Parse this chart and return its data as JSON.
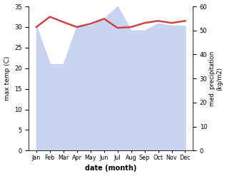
{
  "months": [
    "Jan",
    "Feb",
    "Mar",
    "Apr",
    "May",
    "Jun",
    "Jul",
    "Aug",
    "Sep",
    "Oct",
    "Nov",
    "Dec"
  ],
  "temp": [
    30.0,
    32.5,
    31.2,
    30.0,
    30.8,
    32.0,
    29.8,
    30.0,
    31.0,
    31.5,
    31.0,
    31.5
  ],
  "precip": [
    52,
    36,
    36,
    52,
    52,
    55,
    60,
    50,
    50,
    53,
    52,
    52
  ],
  "temp_color": "#cc4444",
  "precip_fill_color": "#c8d4f0",
  "bg_color": "#ffffff",
  "xlabel": "date (month)",
  "ylabel_left": "max temp (C)",
  "ylabel_right": "med. precipitation\n(kg/m2)",
  "ylim_left": [
    0,
    35
  ],
  "ylim_right": [
    0,
    60
  ],
  "yticks_left": [
    0,
    5,
    10,
    15,
    20,
    25,
    30,
    35
  ],
  "yticks_right": [
    0,
    10,
    20,
    30,
    40,
    50,
    60
  ]
}
